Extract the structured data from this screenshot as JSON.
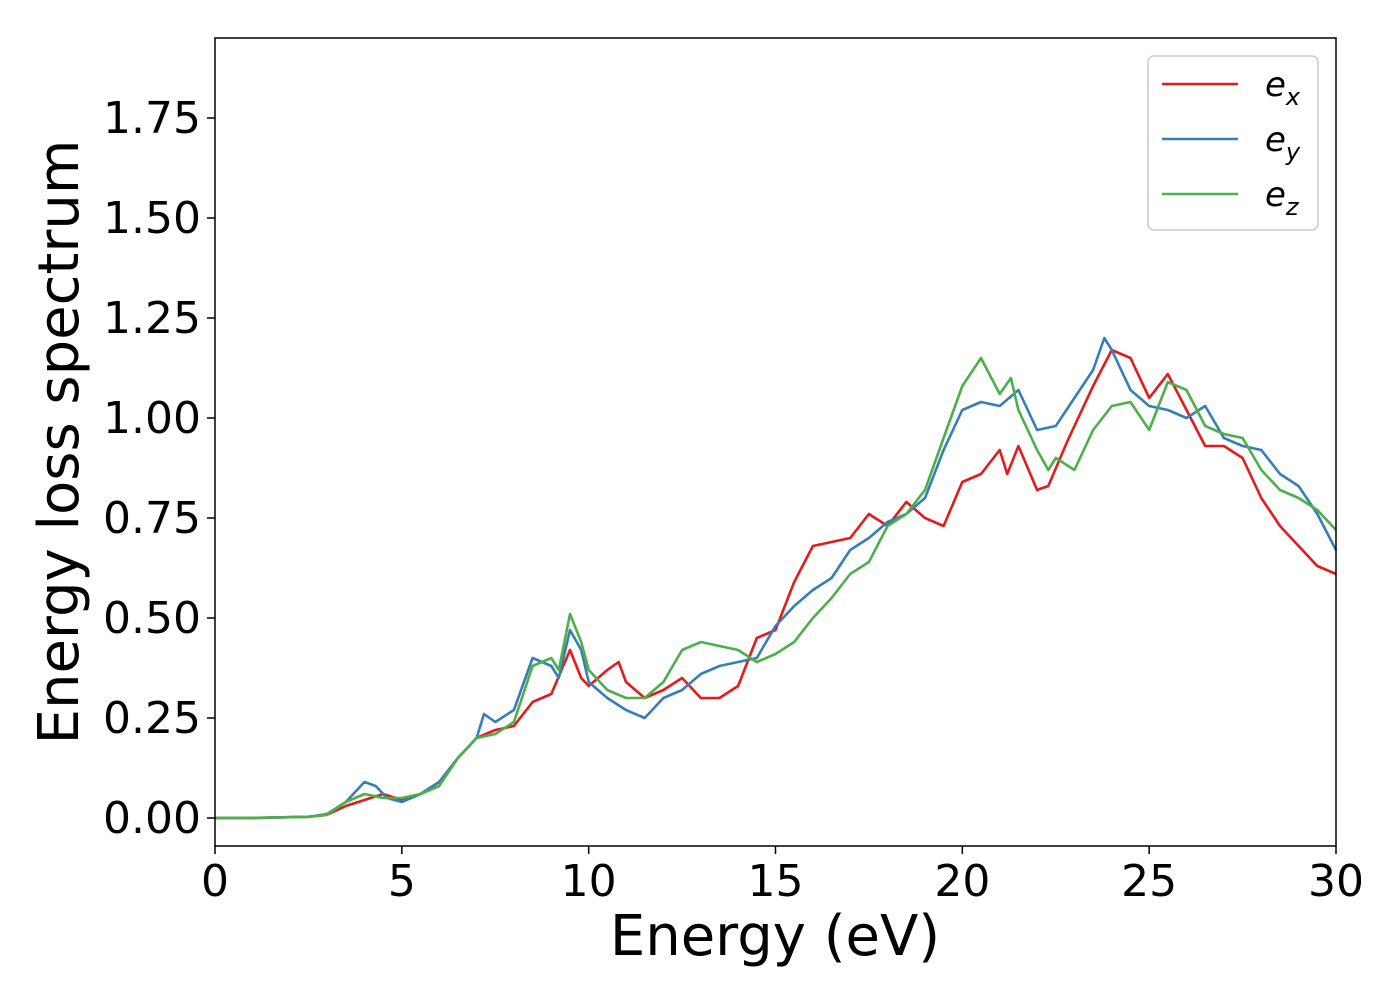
{
  "chart_data": {
    "type": "line",
    "xlabel": "Energy (eV)",
    "ylabel": "Energy loss spectrum",
    "xlim": [
      0,
      30
    ],
    "ylim": [
      -0.07,
      1.95
    ],
    "xticks": [
      0,
      5,
      10,
      15,
      20,
      25,
      30
    ],
    "xtick_labels": [
      "0",
      "5",
      "10",
      "15",
      "20",
      "25",
      "30"
    ],
    "yticks": [
      0.0,
      0.25,
      0.5,
      0.75,
      1.0,
      1.25,
      1.5,
      1.75
    ],
    "ytick_labels": [
      "0.00",
      "0.25",
      "0.50",
      "0.75",
      "1.00",
      "1.25",
      "1.50",
      "1.75"
    ],
    "grid": false,
    "legend_position": "top-right",
    "series": [
      {
        "name": "e",
        "subscript": "x",
        "color": "#e41a1c",
        "points": [
          [
            0,
            0
          ],
          [
            1,
            0
          ],
          [
            2,
            0.002
          ],
          [
            2.5,
            0.003
          ],
          [
            3,
            0.008
          ],
          [
            3.5,
            0.03
          ],
          [
            4,
            0.045
          ],
          [
            4.5,
            0.06
          ],
          [
            5,
            0.045
          ],
          [
            5.5,
            0.06
          ],
          [
            6,
            0.09
          ],
          [
            6.5,
            0.15
          ],
          [
            7,
            0.2
          ],
          [
            7.5,
            0.22
          ],
          [
            8,
            0.23
          ],
          [
            8.5,
            0.29
          ],
          [
            9,
            0.31
          ],
          [
            9.5,
            0.42
          ],
          [
            9.8,
            0.35
          ],
          [
            10,
            0.33
          ],
          [
            10.5,
            0.37
          ],
          [
            10.8,
            0.39
          ],
          [
            11,
            0.34
          ],
          [
            11.5,
            0.3
          ],
          [
            12,
            0.32
          ],
          [
            12.5,
            0.35
          ],
          [
            13,
            0.3
          ],
          [
            13.5,
            0.3
          ],
          [
            14,
            0.33
          ],
          [
            14.5,
            0.45
          ],
          [
            15,
            0.47
          ],
          [
            15.5,
            0.59
          ],
          [
            16,
            0.68
          ],
          [
            16.5,
            0.69
          ],
          [
            17,
            0.7
          ],
          [
            17.5,
            0.76
          ],
          [
            18,
            0.73
          ],
          [
            18.5,
            0.79
          ],
          [
            19,
            0.75
          ],
          [
            19.5,
            0.73
          ],
          [
            20,
            0.84
          ],
          [
            20.5,
            0.86
          ],
          [
            21,
            0.92
          ],
          [
            21.2,
            0.86
          ],
          [
            21.5,
            0.93
          ],
          [
            22,
            0.82
          ],
          [
            22.3,
            0.83
          ],
          [
            22.8,
            0.94
          ],
          [
            23.5,
            1.08
          ],
          [
            24,
            1.17
          ],
          [
            24.5,
            1.15
          ],
          [
            25,
            1.05
          ],
          [
            25.5,
            1.11
          ],
          [
            26,
            1.02
          ],
          [
            26.5,
            0.93
          ],
          [
            27,
            0.93
          ],
          [
            27.5,
            0.9
          ],
          [
            28,
            0.8
          ],
          [
            28.5,
            0.73
          ],
          [
            29,
            0.68
          ],
          [
            29.5,
            0.63
          ],
          [
            30,
            0.61
          ]
        ]
      },
      {
        "name": "e",
        "subscript": "y",
        "color": "#377eb8",
        "points": [
          [
            0,
            0
          ],
          [
            1,
            0
          ],
          [
            2,
            0.002
          ],
          [
            2.5,
            0.003
          ],
          [
            3,
            0.01
          ],
          [
            3.5,
            0.04
          ],
          [
            4,
            0.09
          ],
          [
            4.3,
            0.08
          ],
          [
            4.6,
            0.05
          ],
          [
            5,
            0.04
          ],
          [
            5.5,
            0.06
          ],
          [
            6,
            0.09
          ],
          [
            6.5,
            0.15
          ],
          [
            7,
            0.2
          ],
          [
            7.2,
            0.26
          ],
          [
            7.5,
            0.24
          ],
          [
            8,
            0.27
          ],
          [
            8.5,
            0.4
          ],
          [
            9,
            0.38
          ],
          [
            9.2,
            0.35
          ],
          [
            9.5,
            0.47
          ],
          [
            9.8,
            0.42
          ],
          [
            10,
            0.34
          ],
          [
            10.5,
            0.3
          ],
          [
            11,
            0.27
          ],
          [
            11.5,
            0.25
          ],
          [
            12,
            0.3
          ],
          [
            12.5,
            0.32
          ],
          [
            13,
            0.36
          ],
          [
            13.5,
            0.38
          ],
          [
            14,
            0.39
          ],
          [
            14.5,
            0.4
          ],
          [
            15,
            0.48
          ],
          [
            15.5,
            0.53
          ],
          [
            16,
            0.57
          ],
          [
            16.5,
            0.6
          ],
          [
            17,
            0.67
          ],
          [
            17.5,
            0.7
          ],
          [
            18,
            0.74
          ],
          [
            18.5,
            0.76
          ],
          [
            19,
            0.8
          ],
          [
            19.5,
            0.92
          ],
          [
            20,
            1.02
          ],
          [
            20.5,
            1.04
          ],
          [
            21,
            1.03
          ],
          [
            21.5,
            1.07
          ],
          [
            22,
            0.97
          ],
          [
            22.5,
            0.98
          ],
          [
            23,
            1.05
          ],
          [
            23.5,
            1.12
          ],
          [
            23.8,
            1.2
          ],
          [
            24,
            1.17
          ],
          [
            24.5,
            1.07
          ],
          [
            25,
            1.03
          ],
          [
            25.5,
            1.02
          ],
          [
            26,
            1.0
          ],
          [
            26.5,
            1.03
          ],
          [
            27,
            0.95
          ],
          [
            27.5,
            0.93
          ],
          [
            28,
            0.92
          ],
          [
            28.5,
            0.86
          ],
          [
            29,
            0.83
          ],
          [
            29.5,
            0.76
          ],
          [
            30,
            0.67
          ]
        ]
      },
      {
        "name": "e",
        "subscript": "z",
        "color": "#4daf4a",
        "points": [
          [
            0,
            0
          ],
          [
            1,
            0
          ],
          [
            2,
            0.002
          ],
          [
            2.5,
            0.003
          ],
          [
            3,
            0.008
          ],
          [
            3.5,
            0.04
          ],
          [
            4,
            0.06
          ],
          [
            4.5,
            0.05
          ],
          [
            5,
            0.05
          ],
          [
            5.5,
            0.06
          ],
          [
            6,
            0.08
          ],
          [
            6.5,
            0.15
          ],
          [
            7,
            0.2
          ],
          [
            7.5,
            0.21
          ],
          [
            8,
            0.24
          ],
          [
            8.5,
            0.38
          ],
          [
            9,
            0.4
          ],
          [
            9.2,
            0.37
          ],
          [
            9.5,
            0.51
          ],
          [
            9.8,
            0.44
          ],
          [
            10,
            0.37
          ],
          [
            10.5,
            0.32
          ],
          [
            11,
            0.3
          ],
          [
            11.5,
            0.3
          ],
          [
            12,
            0.34
          ],
          [
            12.5,
            0.42
          ],
          [
            13,
            0.44
          ],
          [
            13.5,
            0.43
          ],
          [
            14,
            0.42
          ],
          [
            14.5,
            0.39
          ],
          [
            15,
            0.41
          ],
          [
            15.5,
            0.44
          ],
          [
            16,
            0.5
          ],
          [
            16.5,
            0.55
          ],
          [
            17,
            0.61
          ],
          [
            17.5,
            0.64
          ],
          [
            18,
            0.73
          ],
          [
            18.5,
            0.76
          ],
          [
            19,
            0.82
          ],
          [
            19.5,
            0.95
          ],
          [
            20,
            1.08
          ],
          [
            20.5,
            1.15
          ],
          [
            21,
            1.06
          ],
          [
            21.3,
            1.1
          ],
          [
            21.5,
            1.02
          ],
          [
            22,
            0.92
          ],
          [
            22.3,
            0.87
          ],
          [
            22.5,
            0.9
          ],
          [
            23,
            0.87
          ],
          [
            23.5,
            0.97
          ],
          [
            24,
            1.03
          ],
          [
            24.5,
            1.04
          ],
          [
            25,
            0.97
          ],
          [
            25.5,
            1.09
          ],
          [
            26,
            1.07
          ],
          [
            26.5,
            0.98
          ],
          [
            27,
            0.96
          ],
          [
            27.5,
            0.95
          ],
          [
            28,
            0.87
          ],
          [
            28.5,
            0.82
          ],
          [
            29,
            0.8
          ],
          [
            29.5,
            0.77
          ],
          [
            30,
            0.72
          ]
        ]
      }
    ]
  }
}
